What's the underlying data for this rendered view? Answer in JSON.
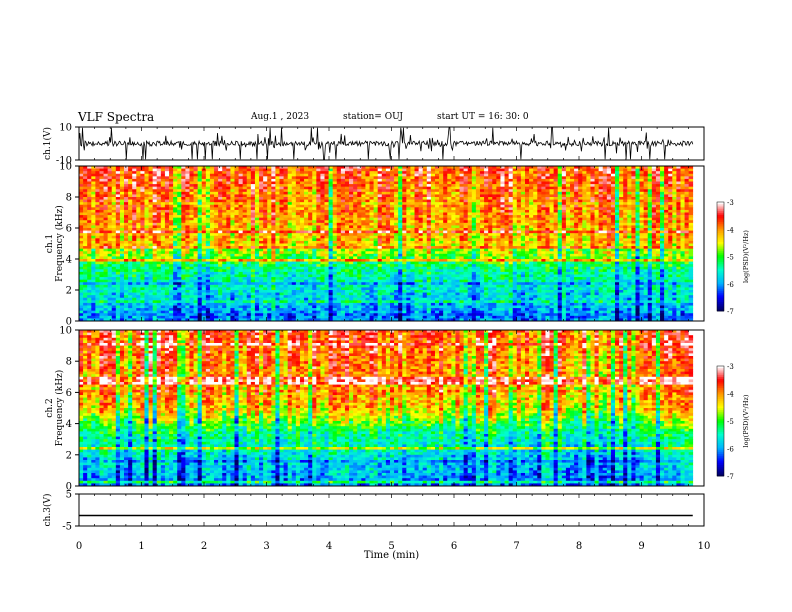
{
  "header": {
    "title": "VLF Spectra",
    "date": "Aug.1 , 2023",
    "station": "station= OUJ",
    "start": "start UT = 16: 30: 0"
  },
  "chart_data": [
    {
      "type": "line",
      "name": "ch1-waveform",
      "ylabel": "ch.1(V)",
      "ylim": [
        -10,
        10
      ],
      "y_ticks": [
        "10",
        "-10"
      ],
      "xlim": [
        0,
        10
      ],
      "x_extent": 9.82,
      "baseline": 0
    },
    {
      "type": "heatmap",
      "name": "ch1-spectrogram",
      "ylabel": "ch.1 Frequency (kHz)",
      "ylim": [
        0,
        10
      ],
      "y_ticks": [
        "0",
        "2",
        "4",
        "6",
        "8",
        "10"
      ],
      "xlim": [
        0,
        10
      ],
      "x_extent": 9.82,
      "colorbar": {
        "label": "log(PSD)(V²/Hz)",
        "range": [
          -7,
          -3
        ],
        "ticks": [
          "-3",
          "-4",
          "-5",
          "-6",
          "-7"
        ]
      }
    },
    {
      "type": "heatmap",
      "name": "ch2-spectrogram",
      "ylabel": "ch.2 Frequency (kHz)",
      "ylim": [
        0,
        10
      ],
      "y_ticks": [
        "0",
        "2",
        "4",
        "6",
        "8",
        "10"
      ],
      "xlim": [
        0,
        10
      ],
      "x_extent": 9.82,
      "colorbar": {
        "label": "log(PSD)(V²/Hz)",
        "range": [
          -7,
          -3
        ],
        "ticks": [
          "-3",
          "-4",
          "-5",
          "-6",
          "-7"
        ]
      }
    },
    {
      "type": "line",
      "name": "ch3-waveform",
      "ylabel": "ch.3(V)",
      "ylim": [
        -5,
        5
      ],
      "y_ticks": [
        "5",
        "-5"
      ],
      "xlim": [
        0,
        10
      ],
      "x_extent": 9.82,
      "constant_value": -1.7
    }
  ],
  "x_axis": {
    "label": "Time (min)",
    "ticks": [
      "0",
      "1",
      "2",
      "3",
      "4",
      "5",
      "6",
      "7",
      "8",
      "9",
      "10"
    ]
  },
  "colors": {
    "scale": [
      "#000066",
      "#0000ff",
      "#00b4ff",
      "#00ffcc",
      "#00ff00",
      "#ffff00",
      "#ff9900",
      "#ff0000",
      "#ffffff"
    ]
  }
}
